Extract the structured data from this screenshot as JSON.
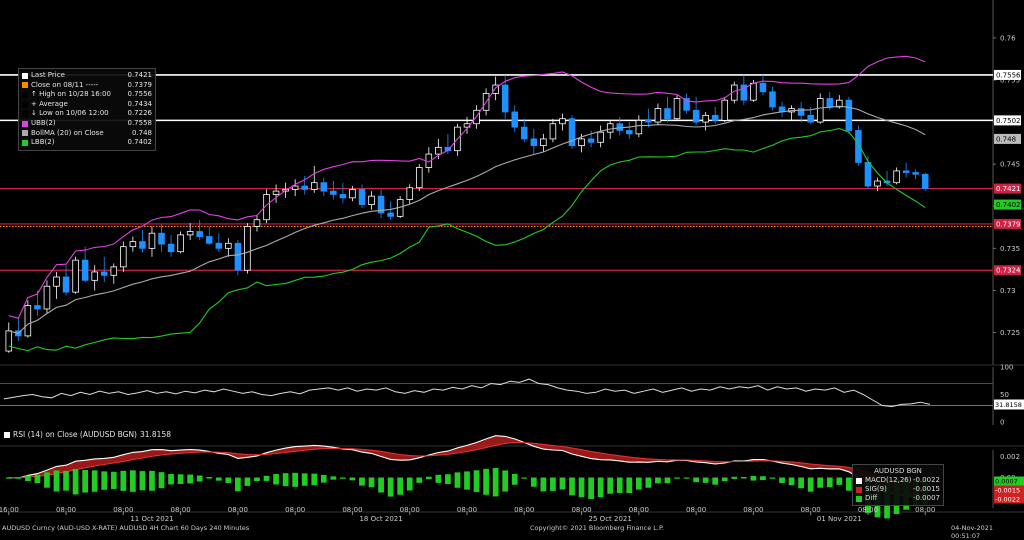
{
  "colors": {
    "background": "#000000",
    "bullish": "#ffffff",
    "bearish": "#1e90ff",
    "ubb": "#e040e0",
    "ma": "#aaaaaa",
    "lbb": "#22cc22",
    "hline_white": "#ffffff",
    "hline_red": "#cc2244",
    "close_dotted": "#ff8800",
    "macd_fill": "#cc2222",
    "diff_bar": "#22cc22"
  },
  "legend": {
    "items": [
      {
        "label": "Last Price",
        "value": "0.7421",
        "color": "#ffffff"
      },
      {
        "label": "Close on 08/11 -----",
        "value": "0.7379",
        "color": "#ff8800"
      },
      {
        "label": "↑ High on 10/28 16:00",
        "value": "0.7556",
        "color": "#000000"
      },
      {
        "label": "+ Average",
        "value": "0.7434",
        "color": "#000000"
      },
      {
        "label": "↓ Low on 10/06 12:00",
        "value": "0.7226",
        "color": "#000000"
      },
      {
        "label": "UBB(2)",
        "value": "0.7558",
        "color": "#e040e0"
      },
      {
        "label": "BollMA (20)  on Close",
        "value": "0.748",
        "color": "#aaaaaa"
      },
      {
        "label": "LBB(2)",
        "value": "0.7402",
        "color": "#22cc22"
      }
    ]
  },
  "rsi": {
    "label": "RSI (14)  on Close (AUDUSD BGN)",
    "value": "31.8158"
  },
  "macd": {
    "title": "AUDUSD BGN",
    "items": [
      {
        "label": "MACD(12,26)",
        "value": "-0.0022",
        "color": "#ffffff"
      },
      {
        "label": "SIG(9)",
        "value": "-0.0015",
        "color": "#cc2222"
      },
      {
        "label": "Diff",
        "value": "-0.0007",
        "color": "#22cc22"
      }
    ]
  },
  "footer": {
    "left": "AUDUSD Curncy (AUD-USD X-RATE) AUDUSD 4H Chart 60 Days 240 Minutes",
    "center": "Copyright© 2021 Bloomberg Finance L.P.",
    "right": "04-Nov-2021 00:51:07"
  },
  "chart_data": {
    "type": "candlestick",
    "price_ticks": [
      "0.76",
      "0.755",
      "0.75",
      "0.745",
      "0.74",
      "0.735",
      "0.73",
      "0.725"
    ],
    "price_tick_values": [
      0.76,
      0.755,
      0.75,
      0.745,
      0.74,
      0.735,
      0.73,
      0.725
    ],
    "ylim": [
      0.7215,
      0.7645
    ],
    "price_tags": [
      {
        "text": "0.7556",
        "value": 0.7556,
        "bg": "#ffffff",
        "fg": "#000000"
      },
      {
        "text": "0.7502",
        "value": 0.7502,
        "bg": "#ffffff",
        "fg": "#000000"
      },
      {
        "text": "0.748",
        "value": 0.748,
        "bg": "#bbbbbb",
        "fg": "#000000"
      },
      {
        "text": "0.7421",
        "value": 0.7421,
        "bg": "#cc2244",
        "fg": "#ffffff"
      },
      {
        "text": "0.7402",
        "value": 0.7402,
        "bg": "#22cc22",
        "fg": "#000000"
      },
      {
        "text": "0.7379",
        "value": 0.7379,
        "bg": "#cc2244",
        "fg": "#ffffff"
      },
      {
        "text": "0.7324",
        "value": 0.7324,
        "bg": "#cc2244",
        "fg": "#ffffff"
      }
    ],
    "hlines": [
      {
        "value": 0.7556,
        "color": "#ffffff",
        "style": "solid"
      },
      {
        "value": 0.7502,
        "color": "#ffffff",
        "style": "solid"
      },
      {
        "value": 0.7421,
        "color": "#cc2244",
        "style": "solid"
      },
      {
        "value": 0.7379,
        "color": "#cc2244",
        "style": "solid"
      },
      {
        "value": 0.7376,
        "color": "#ff8800",
        "style": "dotted"
      },
      {
        "value": 0.7324,
        "color": "#cc2244",
        "style": "solid"
      }
    ],
    "rsi_ticks": [
      "100",
      "50",
      "0"
    ],
    "rsi_tick_values": [
      100,
      50,
      0
    ],
    "rsi_hlines": [
      70,
      30
    ],
    "rsi_tag": "31.8158",
    "rsi_values": [
      42,
      45,
      48,
      50,
      46,
      44,
      52,
      48,
      54,
      50,
      56,
      52,
      55,
      50,
      53,
      57,
      52,
      55,
      51,
      56,
      53,
      58,
      55,
      60,
      56,
      52,
      55,
      50,
      48,
      52,
      55,
      51,
      58,
      60,
      62,
      58,
      62,
      56,
      60,
      58,
      62,
      55,
      52,
      57,
      54,
      60,
      58,
      63,
      60,
      66,
      62,
      70,
      68,
      74,
      72,
      78,
      70,
      68,
      62,
      58,
      56,
      52,
      54,
      60,
      56,
      58,
      52,
      56,
      60,
      54,
      58,
      62,
      56,
      60,
      58,
      64,
      60,
      64,
      62,
      66,
      58,
      64,
      60,
      62,
      56,
      60,
      58,
      62,
      54,
      58,
      50,
      40,
      30,
      28,
      32,
      33,
      36,
      32
    ],
    "macd_ticks": [
      "0.002",
      "0.00",
      "-0.002"
    ],
    "macd_tick_values": [
      0.002,
      0.0,
      -0.002
    ],
    "macd_tags": [
      "0.0007",
      "-0.0015",
      "-0.0022"
    ],
    "x_tick_labels": [
      {
        "label": "16:00",
        "i": 0
      },
      {
        "label": "08:00",
        "i": 6
      },
      {
        "label": "08:00",
        "i": 12
      },
      {
        "label": "08:00",
        "i": 18
      },
      {
        "label": "08:00",
        "i": 24
      },
      {
        "label": "08:00",
        "i": 30
      },
      {
        "label": "08:00",
        "i": 36
      },
      {
        "label": "08:00",
        "i": 42
      },
      {
        "label": "08:00",
        "i": 48
      },
      {
        "label": "08:00",
        "i": 54
      },
      {
        "label": "08:00",
        "i": 60
      },
      {
        "label": "08:00",
        "i": 66
      },
      {
        "label": "08:00",
        "i": 72
      },
      {
        "label": "08:00",
        "i": 78
      },
      {
        "label": "08:00",
        "i": 84
      },
      {
        "label": "08:00",
        "i": 90
      },
      {
        "label": "08:00",
        "i": 96
      }
    ],
    "x_date_labels": [
      {
        "label": "11 Oct 2021",
        "i": 15
      },
      {
        "label": "18 Oct 2021",
        "i": 39
      },
      {
        "label": "25 Oct 2021",
        "i": 63
      },
      {
        "label": "01 Nov 2021",
        "i": 87
      }
    ],
    "candles": [
      [
        0.7228,
        0.7262,
        0.7226,
        0.7252
      ],
      [
        0.7252,
        0.7268,
        0.724,
        0.7246
      ],
      [
        0.7246,
        0.7288,
        0.7244,
        0.7282
      ],
      [
        0.7282,
        0.73,
        0.727,
        0.7278
      ],
      [
        0.7278,
        0.7312,
        0.7272,
        0.7305
      ],
      [
        0.7305,
        0.7322,
        0.729,
        0.7316
      ],
      [
        0.7316,
        0.733,
        0.7294,
        0.7298
      ],
      [
        0.7298,
        0.734,
        0.7296,
        0.7336
      ],
      [
        0.7336,
        0.7352,
        0.731,
        0.7312
      ],
      [
        0.7312,
        0.733,
        0.73,
        0.7322
      ],
      [
        0.7322,
        0.734,
        0.731,
        0.7318
      ],
      [
        0.7318,
        0.7332,
        0.7308,
        0.7328
      ],
      [
        0.7328,
        0.7358,
        0.7322,
        0.7352
      ],
      [
        0.7352,
        0.7364,
        0.7346,
        0.7358
      ],
      [
        0.7358,
        0.7372,
        0.7345,
        0.735
      ],
      [
        0.735,
        0.7376,
        0.734,
        0.7368
      ],
      [
        0.7368,
        0.7378,
        0.7346,
        0.7355
      ],
      [
        0.7355,
        0.7366,
        0.734,
        0.7346
      ],
      [
        0.7346,
        0.737,
        0.7344,
        0.7366
      ],
      [
        0.7366,
        0.738,
        0.736,
        0.737
      ],
      [
        0.737,
        0.7384,
        0.736,
        0.7364
      ],
      [
        0.7364,
        0.7376,
        0.7354,
        0.7356
      ],
      [
        0.7356,
        0.7368,
        0.7346,
        0.735
      ],
      [
        0.735,
        0.7362,
        0.734,
        0.7356
      ],
      [
        0.7356,
        0.736,
        0.7318,
        0.7324
      ],
      [
        0.7324,
        0.738,
        0.732,
        0.7376
      ],
      [
        0.7376,
        0.739,
        0.737,
        0.7384
      ],
      [
        0.7384,
        0.742,
        0.738,
        0.7414
      ],
      [
        0.7414,
        0.7426,
        0.7404,
        0.7418
      ],
      [
        0.7418,
        0.7428,
        0.741,
        0.742
      ],
      [
        0.742,
        0.7432,
        0.7412,
        0.7424
      ],
      [
        0.7424,
        0.7436,
        0.7414,
        0.742
      ],
      [
        0.742,
        0.7448,
        0.7416,
        0.7428
      ],
      [
        0.7428,
        0.7434,
        0.7412,
        0.7418
      ],
      [
        0.7418,
        0.743,
        0.7408,
        0.7414
      ],
      [
        0.7414,
        0.7428,
        0.7404,
        0.741
      ],
      [
        0.741,
        0.7424,
        0.7406,
        0.742
      ],
      [
        0.742,
        0.7426,
        0.7398,
        0.7402
      ],
      [
        0.7402,
        0.7418,
        0.7396,
        0.7412
      ],
      [
        0.7412,
        0.742,
        0.7386,
        0.7392
      ],
      [
        0.7392,
        0.7406,
        0.7384,
        0.7388
      ],
      [
        0.7388,
        0.7412,
        0.7386,
        0.7408
      ],
      [
        0.7408,
        0.7426,
        0.7402,
        0.7422
      ],
      [
        0.7422,
        0.745,
        0.7418,
        0.7446
      ],
      [
        0.7446,
        0.747,
        0.744,
        0.7462
      ],
      [
        0.7462,
        0.748,
        0.7456,
        0.747
      ],
      [
        0.747,
        0.7486,
        0.7462,
        0.7466
      ],
      [
        0.7466,
        0.7498,
        0.746,
        0.7494
      ],
      [
        0.7494,
        0.7506,
        0.7486,
        0.7498
      ],
      [
        0.7498,
        0.752,
        0.7492,
        0.7514
      ],
      [
        0.7514,
        0.754,
        0.7508,
        0.7534
      ],
      [
        0.7534,
        0.7554,
        0.7526,
        0.7544
      ],
      [
        0.7544,
        0.7556,
        0.7504,
        0.7512
      ],
      [
        0.7512,
        0.752,
        0.7488,
        0.7494
      ],
      [
        0.7494,
        0.7504,
        0.7476,
        0.748
      ],
      [
        0.748,
        0.7492,
        0.7462,
        0.7472
      ],
      [
        0.7472,
        0.7486,
        0.7464,
        0.748
      ],
      [
        0.748,
        0.7504,
        0.7476,
        0.7498
      ],
      [
        0.7498,
        0.751,
        0.749,
        0.7504
      ],
      [
        0.7504,
        0.7508,
        0.7468,
        0.7472
      ],
      [
        0.7472,
        0.7486,
        0.7464,
        0.748
      ],
      [
        0.748,
        0.749,
        0.747,
        0.7476
      ],
      [
        0.7476,
        0.7496,
        0.747,
        0.7488
      ],
      [
        0.7488,
        0.7502,
        0.748,
        0.7498
      ],
      [
        0.7498,
        0.7506,
        0.7484,
        0.749
      ],
      [
        0.749,
        0.75,
        0.748,
        0.7486
      ],
      [
        0.7486,
        0.7508,
        0.7482,
        0.7502
      ],
      [
        0.7502,
        0.7516,
        0.7494,
        0.75
      ],
      [
        0.75,
        0.7522,
        0.7496,
        0.7516
      ],
      [
        0.7516,
        0.753,
        0.75,
        0.7504
      ],
      [
        0.7504,
        0.7532,
        0.7502,
        0.7528
      ],
      [
        0.7528,
        0.7534,
        0.751,
        0.7514
      ],
      [
        0.7514,
        0.753,
        0.7496,
        0.75
      ],
      [
        0.75,
        0.7512,
        0.749,
        0.7508
      ],
      [
        0.7508,
        0.7518,
        0.7498,
        0.7502
      ],
      [
        0.7502,
        0.753,
        0.75,
        0.7526
      ],
      [
        0.7526,
        0.7548,
        0.7522,
        0.7544
      ],
      [
        0.7544,
        0.7556,
        0.752,
        0.7526
      ],
      [
        0.7526,
        0.755,
        0.7524,
        0.7546
      ],
      [
        0.7546,
        0.7556,
        0.7532,
        0.7536
      ],
      [
        0.7536,
        0.7542,
        0.7514,
        0.7518
      ],
      [
        0.7518,
        0.7524,
        0.7506,
        0.7512
      ],
      [
        0.7512,
        0.752,
        0.7502,
        0.7516
      ],
      [
        0.7516,
        0.7524,
        0.75,
        0.7508
      ],
      [
        0.7508,
        0.7518,
        0.7498,
        0.75
      ],
      [
        0.75,
        0.7534,
        0.7498,
        0.7528
      ],
      [
        0.7528,
        0.7536,
        0.7514,
        0.7518
      ],
      [
        0.7518,
        0.7532,
        0.7516,
        0.7526
      ],
      [
        0.7526,
        0.753,
        0.7486,
        0.749
      ],
      [
        0.749,
        0.7496,
        0.7448,
        0.7452
      ],
      [
        0.7452,
        0.746,
        0.742,
        0.7424
      ],
      [
        0.7424,
        0.7434,
        0.7418,
        0.743
      ],
      [
        0.743,
        0.7442,
        0.7424,
        0.7428
      ],
      [
        0.7428,
        0.7446,
        0.7426,
        0.7442
      ],
      [
        0.7442,
        0.7452,
        0.7434,
        0.744
      ],
      [
        0.744,
        0.7444,
        0.7432,
        0.7438
      ],
      [
        0.7438,
        0.744,
        0.7418,
        0.7421
      ]
    ]
  }
}
